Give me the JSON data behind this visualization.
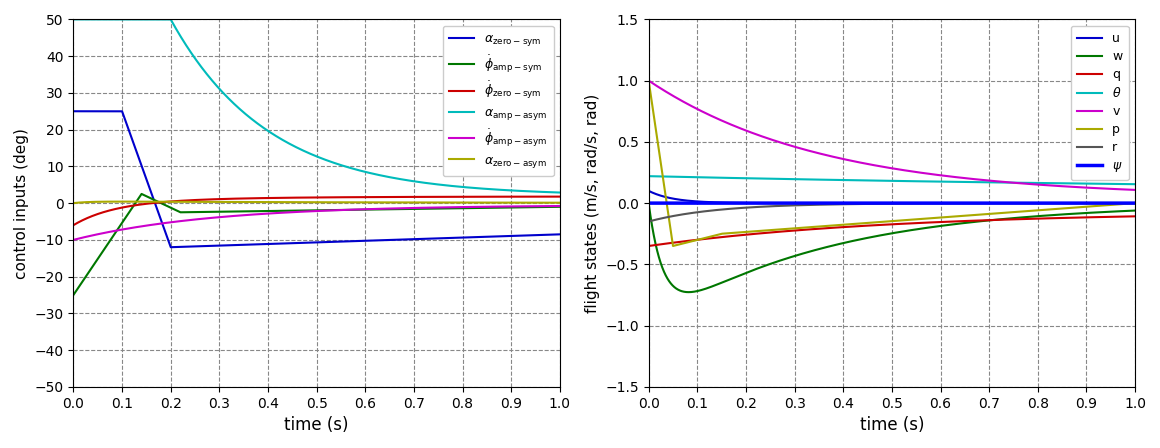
{
  "left_plot": {
    "xlabel": "time (s)",
    "ylabel": "control inputs (deg)",
    "xlim": [
      0,
      1
    ],
    "ylim": [
      -50,
      50
    ],
    "yticks": [
      -50,
      -40,
      -30,
      -20,
      -10,
      0,
      10,
      20,
      30,
      40,
      50
    ],
    "xticks": [
      0,
      0.1,
      0.2,
      0.3,
      0.4,
      0.5,
      0.6,
      0.7,
      0.8,
      0.9,
      1.0
    ],
    "colors": [
      "#0000cc",
      "#007700",
      "#cc0000",
      "#00bbbb",
      "#cc00cc",
      "#aaaa00"
    ],
    "labels": [
      "α_zero-sym",
      "ϕ_amp-sym",
      "ϕ_zero-sym",
      "α_amp-asym",
      "ϕ_amp-asym",
      "α_zero-asym"
    ]
  },
  "right_plot": {
    "xlabel": "time (s)",
    "ylabel": "flight states (m/s, rad/s, rad)",
    "xlim": [
      0,
      1
    ],
    "ylim": [
      -1.5,
      1.5
    ],
    "yticks": [
      -1.5,
      -1.0,
      -0.5,
      0,
      0.5,
      1.0,
      1.5
    ],
    "xticks": [
      0,
      0.1,
      0.2,
      0.3,
      0.4,
      0.5,
      0.6,
      0.7,
      0.8,
      0.9,
      1.0
    ],
    "colors": [
      "#0000cc",
      "#007700",
      "#cc0000",
      "#00bbbb",
      "#cc00cc",
      "#aaaa00",
      "#555555",
      "#0000ff"
    ],
    "labels": [
      "u",
      "w",
      "q",
      "θ",
      "v",
      "p",
      "r",
      "ψ"
    ],
    "linewidths": [
      1.5,
      1.5,
      1.5,
      1.5,
      1.5,
      1.5,
      1.5,
      2.5
    ]
  },
  "bg_color": "#ffffff",
  "grid_color": "#888888",
  "grid_style": "--"
}
